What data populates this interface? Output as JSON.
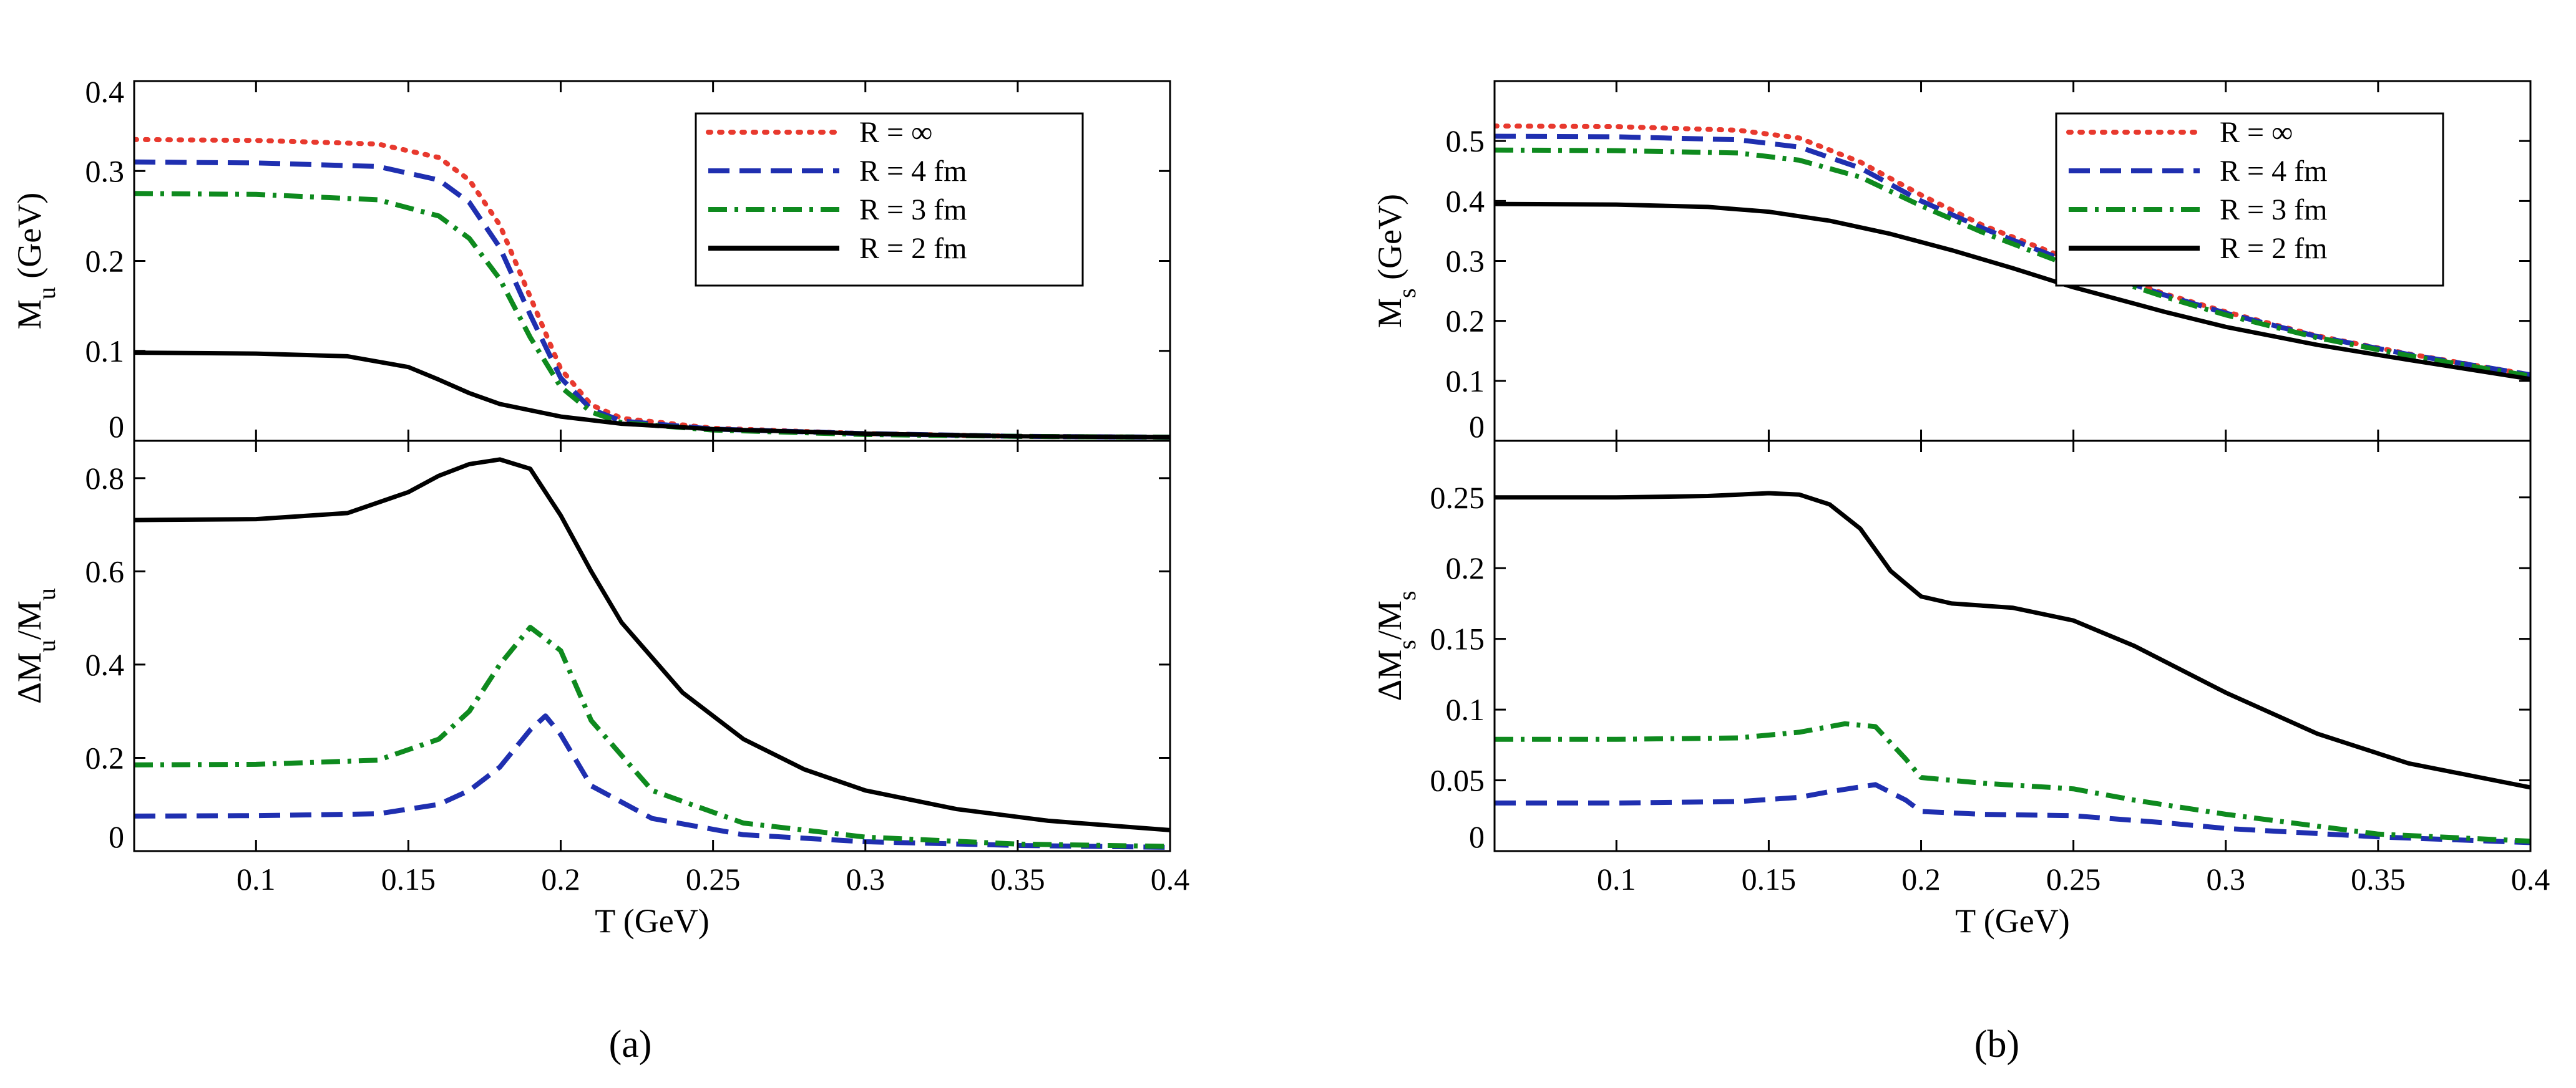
{
  "figure": {
    "captions": [
      "(a)",
      "(b)"
    ]
  },
  "colors": {
    "R_inf": "#e8392e",
    "R_4fm": "#1f2fb0",
    "R_3fm": "#0e8a1e",
    "R_2fm": "#000000"
  },
  "chart_data": [
    {
      "id": "a-top",
      "type": "line",
      "ylabel": "M_u (GeV)",
      "xlabel": "",
      "xlim": [
        0.06,
        0.4
      ],
      "ylim": [
        0,
        0.4
      ],
      "yticks": [
        "0",
        "0.1",
        "0.2",
        "0.3",
        "0.4"
      ],
      "legend_position": "top-right",
      "series": [
        {
          "name": "R = ∞",
          "style": "dotted",
          "color": "#e8392e",
          "x": [
            0.06,
            0.1,
            0.14,
            0.16,
            0.17,
            0.18,
            0.19,
            0.2,
            0.21,
            0.22,
            0.25,
            0.3,
            0.35,
            0.4
          ],
          "y": [
            0.335,
            0.334,
            0.33,
            0.315,
            0.29,
            0.24,
            0.16,
            0.08,
            0.04,
            0.025,
            0.014,
            0.008,
            0.005,
            0.004
          ]
        },
        {
          "name": "R = 4 fm",
          "style": "dashed",
          "color": "#1f2fb0",
          "x": [
            0.06,
            0.1,
            0.14,
            0.16,
            0.17,
            0.18,
            0.19,
            0.2,
            0.21,
            0.22,
            0.25,
            0.3,
            0.35,
            0.4
          ],
          "y": [
            0.31,
            0.309,
            0.305,
            0.29,
            0.265,
            0.215,
            0.14,
            0.07,
            0.035,
            0.022,
            0.013,
            0.008,
            0.005,
            0.004
          ]
        },
        {
          "name": "R = 3 fm",
          "style": "dashdot",
          "color": "#0e8a1e",
          "x": [
            0.06,
            0.1,
            0.14,
            0.16,
            0.17,
            0.18,
            0.19,
            0.2,
            0.21,
            0.22,
            0.25,
            0.3,
            0.35,
            0.4
          ],
          "y": [
            0.275,
            0.274,
            0.268,
            0.25,
            0.225,
            0.18,
            0.115,
            0.06,
            0.032,
            0.02,
            0.012,
            0.007,
            0.005,
            0.004
          ]
        },
        {
          "name": "R = 2 fm",
          "style": "solid",
          "color": "#000000",
          "x": [
            0.06,
            0.1,
            0.13,
            0.15,
            0.16,
            0.17,
            0.18,
            0.2,
            0.22,
            0.25,
            0.3,
            0.35,
            0.4
          ],
          "y": [
            0.098,
            0.097,
            0.094,
            0.082,
            0.068,
            0.053,
            0.041,
            0.027,
            0.019,
            0.013,
            0.008,
            0.005,
            0.004
          ]
        }
      ]
    },
    {
      "id": "a-bottom",
      "type": "line",
      "ylabel": "ΔM_u/M_u",
      "xlabel": "T (GeV)",
      "xlim": [
        0.06,
        0.4
      ],
      "ylim": [
        0,
        0.88
      ],
      "yticks": [
        "0",
        "0.2",
        "0.4",
        "0.6",
        "0.8"
      ],
      "xticks": [
        "0.1",
        "0.15",
        "0.2",
        "0.25",
        "0.3",
        "0.35",
        "0.4"
      ],
      "series": [
        {
          "name": "R = 4 fm",
          "style": "dashed",
          "color": "#1f2fb0",
          "x": [
            0.06,
            0.1,
            0.14,
            0.16,
            0.17,
            0.18,
            0.19,
            0.195,
            0.2,
            0.21,
            0.23,
            0.26,
            0.3,
            0.35,
            0.4
          ],
          "y": [
            0.075,
            0.076,
            0.08,
            0.1,
            0.13,
            0.18,
            0.26,
            0.29,
            0.25,
            0.14,
            0.07,
            0.035,
            0.02,
            0.012,
            0.008
          ]
        },
        {
          "name": "R = 3 fm",
          "style": "dashdot",
          "color": "#0e8a1e",
          "x": [
            0.06,
            0.1,
            0.14,
            0.16,
            0.17,
            0.18,
            0.19,
            0.2,
            0.21,
            0.23,
            0.26,
            0.3,
            0.35,
            0.4
          ],
          "y": [
            0.185,
            0.186,
            0.195,
            0.24,
            0.3,
            0.4,
            0.48,
            0.43,
            0.28,
            0.13,
            0.06,
            0.03,
            0.015,
            0.01
          ]
        },
        {
          "name": "R = 2 fm",
          "style": "solid",
          "color": "#000000",
          "x": [
            0.06,
            0.1,
            0.13,
            0.15,
            0.16,
            0.17,
            0.18,
            0.19,
            0.2,
            0.21,
            0.22,
            0.24,
            0.26,
            0.28,
            0.3,
            0.33,
            0.36,
            0.4
          ],
          "y": [
            0.71,
            0.712,
            0.725,
            0.77,
            0.805,
            0.83,
            0.84,
            0.82,
            0.72,
            0.6,
            0.49,
            0.34,
            0.24,
            0.175,
            0.13,
            0.09,
            0.065,
            0.045
          ]
        }
      ]
    },
    {
      "id": "b-top",
      "type": "line",
      "ylabel": "M_s (GeV)",
      "xlabel": "",
      "xlim": [
        0.06,
        0.4
      ],
      "ylim": [
        0,
        0.6
      ],
      "yticks": [
        "0",
        "0.1",
        "0.2",
        "0.3",
        "0.4",
        "0.5"
      ],
      "legend_position": "top-right",
      "series": [
        {
          "name": "R = ∞",
          "style": "dotted",
          "color": "#e8392e",
          "x": [
            0.06,
            0.1,
            0.14,
            0.16,
            0.18,
            0.2,
            0.22,
            0.25,
            0.28,
            0.3,
            0.33,
            0.36,
            0.4
          ],
          "y": [
            0.525,
            0.524,
            0.518,
            0.505,
            0.465,
            0.41,
            0.36,
            0.3,
            0.245,
            0.215,
            0.175,
            0.145,
            0.11
          ]
        },
        {
          "name": "R = 4 fm",
          "style": "dashed",
          "color": "#1f2fb0",
          "x": [
            0.06,
            0.1,
            0.14,
            0.16,
            0.18,
            0.2,
            0.22,
            0.25,
            0.28,
            0.3,
            0.33,
            0.36,
            0.4
          ],
          "y": [
            0.508,
            0.507,
            0.502,
            0.49,
            0.455,
            0.4,
            0.355,
            0.295,
            0.243,
            0.213,
            0.174,
            0.144,
            0.11
          ]
        },
        {
          "name": "R = 3 fm",
          "style": "dashdot",
          "color": "#0e8a1e",
          "x": [
            0.06,
            0.1,
            0.14,
            0.16,
            0.18,
            0.2,
            0.22,
            0.25,
            0.28,
            0.3,
            0.33,
            0.36,
            0.4
          ],
          "y": [
            0.485,
            0.484,
            0.48,
            0.468,
            0.44,
            0.392,
            0.348,
            0.29,
            0.24,
            0.21,
            0.172,
            0.142,
            0.108
          ]
        },
        {
          "name": "R = 2 fm",
          "style": "solid",
          "color": "#000000",
          "x": [
            0.06,
            0.1,
            0.13,
            0.15,
            0.17,
            0.19,
            0.21,
            0.23,
            0.25,
            0.28,
            0.3,
            0.33,
            0.36,
            0.4
          ],
          "y": [
            0.395,
            0.394,
            0.39,
            0.382,
            0.367,
            0.345,
            0.318,
            0.288,
            0.256,
            0.215,
            0.19,
            0.16,
            0.135,
            0.103
          ]
        }
      ]
    },
    {
      "id": "b-bottom",
      "type": "line",
      "ylabel": "ΔM_s/M_s",
      "xlabel": "T (GeV)",
      "xlim": [
        0.06,
        0.4
      ],
      "ylim": [
        0,
        0.29
      ],
      "yticks": [
        "0",
        "0.05",
        "0.1",
        "0.15",
        "0.2",
        "0.25"
      ],
      "xticks": [
        "0.1",
        "0.15",
        "0.2",
        "0.25",
        "0.3",
        "0.35",
        "0.4"
      ],
      "series": [
        {
          "name": "R = 4 fm",
          "style": "dashed",
          "color": "#1f2fb0",
          "x": [
            0.06,
            0.1,
            0.14,
            0.16,
            0.17,
            0.185,
            0.195,
            0.2,
            0.22,
            0.25,
            0.28,
            0.3,
            0.35,
            0.4
          ],
          "y": [
            0.034,
            0.034,
            0.035,
            0.038,
            0.042,
            0.047,
            0.036,
            0.028,
            0.026,
            0.025,
            0.02,
            0.016,
            0.01,
            0.006
          ]
        },
        {
          "name": "R = 3 fm",
          "style": "dashdot",
          "color": "#0e8a1e",
          "x": [
            0.06,
            0.1,
            0.14,
            0.16,
            0.175,
            0.185,
            0.195,
            0.2,
            0.22,
            0.25,
            0.27,
            0.3,
            0.35,
            0.4
          ],
          "y": [
            0.079,
            0.079,
            0.08,
            0.084,
            0.09,
            0.088,
            0.065,
            0.052,
            0.048,
            0.044,
            0.036,
            0.026,
            0.012,
            0.007
          ]
        },
        {
          "name": "R = 2 fm",
          "style": "solid",
          "color": "#000000",
          "x": [
            0.06,
            0.1,
            0.13,
            0.15,
            0.16,
            0.17,
            0.18,
            0.19,
            0.2,
            0.21,
            0.23,
            0.25,
            0.27,
            0.3,
            0.33,
            0.36,
            0.4
          ],
          "y": [
            0.25,
            0.25,
            0.251,
            0.253,
            0.252,
            0.245,
            0.228,
            0.198,
            0.18,
            0.175,
            0.172,
            0.163,
            0.145,
            0.112,
            0.083,
            0.062,
            0.045
          ]
        }
      ]
    }
  ]
}
